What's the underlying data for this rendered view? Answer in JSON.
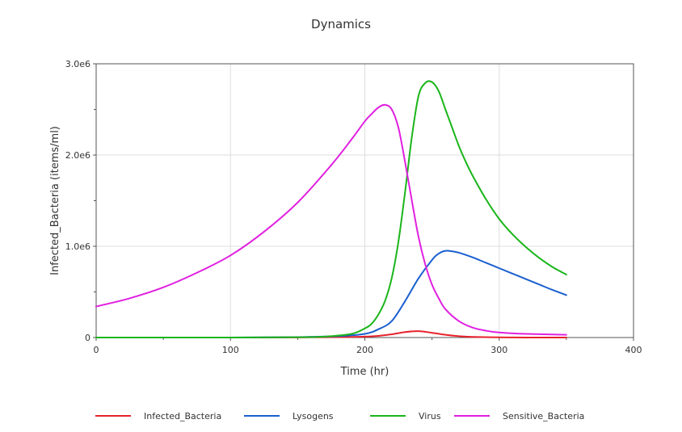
{
  "chart_data": {
    "type": "line",
    "title": "Dynamics",
    "xlabel": "Time (hr)",
    "ylabel": "Infected_Bacteria (items/ml)",
    "xlim": [
      0,
      400
    ],
    "ylim": [
      0,
      3000000
    ],
    "x_ticks": [
      "0",
      "100",
      "200",
      "300",
      "400"
    ],
    "y_ticks": [
      "0",
      "1.0e6",
      "2.0e6",
      "3.0e6"
    ],
    "grid": true,
    "legend_position": "bottom",
    "series": [
      {
        "name": "Infected_Bacteria",
        "color": "#e8222c",
        "x": [
          0,
          50,
          100,
          150,
          180,
          200,
          210,
          220,
          230,
          240,
          250,
          260,
          270,
          280,
          300,
          320,
          350
        ],
        "y": [
          0,
          0,
          0,
          1000,
          4000,
          10000,
          18000,
          35000,
          60000,
          70000,
          52000,
          30000,
          15000,
          7000,
          2000,
          500,
          100
        ]
      },
      {
        "name": "Lysogens",
        "color": "#1a5fd0",
        "x": [
          0,
          100,
          150,
          160,
          180,
          200,
          210,
          220,
          230,
          240,
          250,
          255,
          260,
          265,
          270,
          280,
          290,
          300,
          310,
          320,
          330,
          340,
          350
        ],
        "y": [
          0,
          0,
          5000,
          8000,
          15000,
          40000,
          90000,
          180000,
          400000,
          650000,
          850000,
          920000,
          950000,
          945000,
          930000,
          880000,
          820000,
          760000,
          700000,
          640000,
          580000,
          520000,
          465000
        ]
      },
      {
        "name": "Virus",
        "color": "#1ab51a",
        "x": [
          0,
          100,
          150,
          170,
          190,
          200,
          205,
          210,
          215,
          220,
          225,
          230,
          235,
          240,
          245,
          250,
          255,
          260,
          265,
          270,
          275,
          280,
          290,
          300,
          310,
          320,
          330,
          340,
          350
        ],
        "y": [
          0,
          0,
          3000,
          10000,
          40000,
          100000,
          150000,
          250000,
          400000,
          650000,
          1050000,
          1600000,
          2200000,
          2650000,
          2790000,
          2800000,
          2700000,
          2500000,
          2300000,
          2100000,
          1930000,
          1780000,
          1520000,
          1300000,
          1130000,
          990000,
          870000,
          770000,
          690000
        ]
      },
      {
        "name": "Sensitive_Bacteria",
        "color": "#e020e0",
        "x": [
          0,
          25,
          50,
          75,
          100,
          125,
          150,
          175,
          190,
          200,
          205,
          210,
          215,
          220,
          225,
          230,
          235,
          240,
          245,
          250,
          255,
          260,
          270,
          280,
          290,
          300,
          320,
          350
        ],
        "y": [
          340000,
          430000,
          550000,
          710000,
          900000,
          1160000,
          1480000,
          1890000,
          2170000,
          2370000,
          2450000,
          2520000,
          2550000,
          2500000,
          2300000,
          1920000,
          1500000,
          1100000,
          800000,
          580000,
          430000,
          310000,
          180000,
          110000,
          75000,
          55000,
          40000,
          30000
        ]
      }
    ]
  }
}
